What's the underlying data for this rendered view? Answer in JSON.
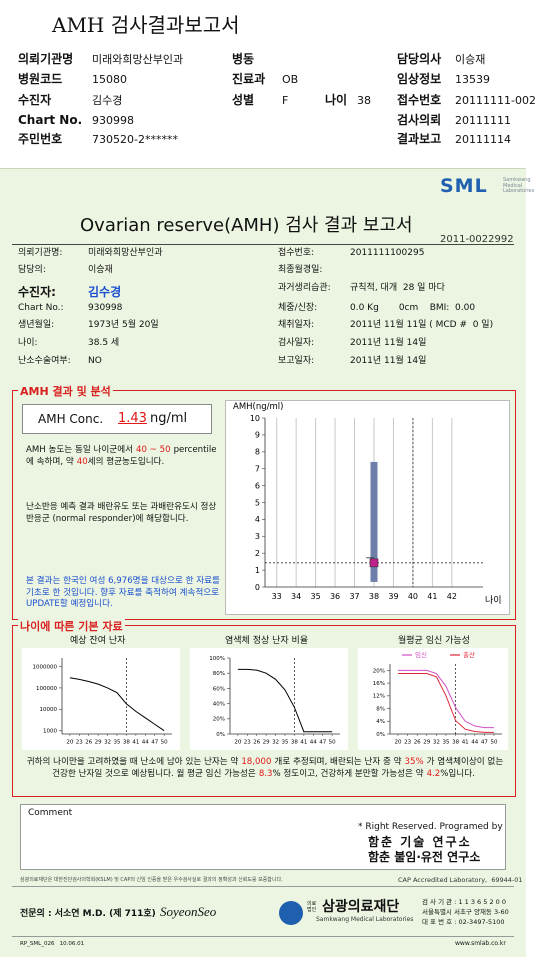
{
  "header": {
    "title": "AMH 검사결과보고서",
    "fields": [
      {
        "label": "의뢰기관명",
        "value": "미래와희망산부인과"
      },
      {
        "label": "병동"
      },
      {
        "label": "담당의사",
        "value": "이승재"
      },
      {
        "label": "병원코드",
        "value": "15080"
      },
      {
        "label": "진료과",
        "value": "OB"
      },
      {
        "label": "임상정보",
        "value": "13539"
      },
      {
        "label": "수진자",
        "value": "김수경"
      },
      {
        "label": "성별",
        "value": "F"
      },
      {
        "label": "나이",
        "value": "38"
      },
      {
        "label": "접수번호",
        "value": "20111111-002"
      },
      {
        "label": "Chart No.",
        "value": "930998"
      },
      {
        "label": "검사의뢰",
        "value": "20111111"
      },
      {
        "label": "주민번호",
        "value": "730520-2******"
      },
      {
        "label": "결과보고",
        "value": "20111114"
      }
    ]
  },
  "report": {
    "logo": {
      "name": "SML",
      "sub": "Samkwang Medical Laboratories"
    },
    "title": "Ovarian reserve(AMH) 검사 결과 보고서",
    "number": "2011-0022992",
    "info_left": [
      {
        "label": "의뢰기관명:",
        "value": "미래와희망산부인과"
      },
      {
        "label": "담당의:",
        "value": "이승재"
      },
      {
        "label": "수진자:",
        "value": "김수경"
      },
      {
        "label": "Chart No.:",
        "value": "930998"
      },
      {
        "label": "생년월일:",
        "value": "1973년 5월 20일"
      },
      {
        "label": "나이:",
        "value": "38.5 세"
      },
      {
        "label": "난소수술여부:",
        "value": "NO"
      }
    ],
    "info_right": [
      {
        "label": "접수번호:",
        "value": "2011111100295"
      },
      {
        "label": "최종월경일:"
      },
      {
        "label": "과거생리습관:",
        "value": "규칙적, 대개  28 일 마다"
      },
      {
        "label": "체중/신장:",
        "value": "0.0 Kg       0cm    BMI:  0.00"
      },
      {
        "label": "채취일자:",
        "value": "2011년 11월 11일 ( MCD #  0 일)"
      },
      {
        "label": "검사일자:",
        "value": "2011년 11월 14일"
      },
      {
        "label": "보고일자:",
        "value": "2011년 11월 14일"
      }
    ],
    "amh_section": "AMH 결과 및 분석",
    "conc": {
      "label": "AMH Conc.",
      "value": "1.43",
      "unit": "ng/ml"
    },
    "analysis": [
      "AMH 농도는 동일 나이군에서",
      "40 ~ 50",
      "percentile에 속하며, 약",
      "40",
      "세의 평균농도입니다."
    ],
    "response": "난소반응 예측 결과 배란유도 또는 과배란유도시 정상반응군 (normal responder)에 해당합니다.",
    "note": "본 결과는 한국인 여성 6,976명을 대상으로 한 자료를 기초로 한 것입니다. 향후 자료를 축적하여 계속적으로 UPDATE할 예정입니다.",
    "basic_section": "나이에 따른 기본 자료",
    "summary": [
      "귀하의 나이만을 고려하였을 때 난소에 남아 있는 난자는 약",
      "18,000",
      "개로 추정되며, 배란되는 난자 중 약",
      "35%",
      "가 염색체이상이 없는 건강한 난자일 것으로 예상됩니다. 월 평균 임신 가능성은",
      "8.3",
      "% 정도이고, 건강하게 분만할 가능성은 약",
      "4.2",
      "%입니다."
    ],
    "comment": "Comment",
    "credit": [
      "* Right Reserved. Programed by",
      "함춘 기술 연구소",
      "함춘 불임·유전 연구소"
    ]
  },
  "footer": {
    "cert": "삼광의료재단은 대한진단검사의학회(KSLM) 및 CAP의 신임 인증을 받은 우수검사실로 결과의 정확성과 신뢰도를 보증합니다.",
    "cap": "CAP Accredited Laboratory,  69944-01",
    "doctor": "전문의 : 서소연 M.D. (제 711호)",
    "signature": "SoyeonSeo",
    "org_prefix": "의료법인",
    "org": "삼광의료재단",
    "org_en": "Samkwang Medical Laboratories",
    "address": [
      "검 사 기 관 : 1 1 3 6 5 2 0 0",
      "서울특별시 서초구 양재동 3-60",
      "대 표 번 호 : 02-3497-5100"
    ],
    "form": "RP_SML_026   10.06.01",
    "url": "www.smlab.co.kr"
  },
  "chart_data": [
    {
      "type": "range",
      "ylabel": "AMH(ng/ml)",
      "xlabel": "나이",
      "x": [
        38
      ],
      "values": [
        1.43
      ],
      "low": [
        0.3
      ],
      "high": [
        7.4
      ],
      "bar_color": "#6d7fa8",
      "point_color": "#c0208a",
      "reference_x": 40,
      "xlim": [
        32.4,
        43.6
      ],
      "xticks": [
        33,
        34,
        35,
        36,
        37,
        38,
        39,
        40,
        41,
        42
      ],
      "ylim": [
        0,
        10
      ],
      "yticks": [
        0,
        1,
        2,
        3,
        4,
        5,
        6,
        7,
        8,
        9,
        10
      ],
      "grid": true
    },
    {
      "type": "line",
      "title": "예상 잔여 난자",
      "log": true,
      "x": [
        20,
        23,
        26,
        29,
        32,
        35,
        38,
        41,
        44,
        47,
        50
      ],
      "series": [
        {
          "color": "#000000",
          "values": [
            300000,
            250000,
            200000,
            150000,
            100000,
            60000,
            18000,
            8000,
            4000,
            2000,
            1000
          ]
        }
      ],
      "reference_x": 38,
      "xlim": [
        17.5,
        52.5
      ],
      "xticks": [
        20,
        23,
        26,
        29,
        32,
        35,
        38,
        41,
        44,
        47,
        50
      ],
      "ylim": [
        700,
        2500000
      ],
      "yticks": [
        1000,
        10000,
        100000,
        1000000
      ]
    },
    {
      "type": "line",
      "title": "염색체 정상 난자 비율",
      "x": [
        20,
        23,
        26,
        29,
        32,
        35,
        38,
        41,
        44,
        47,
        50
      ],
      "series": [
        {
          "color": "#000000",
          "values": [
            85,
            85,
            84,
            80,
            72,
            58,
            35,
            3,
            3,
            3,
            3
          ]
        }
      ],
      "reference_x": 38,
      "xlim": [
        17.5,
        52.5
      ],
      "xticks": [
        20,
        23,
        26,
        29,
        32,
        35,
        38,
        41,
        44,
        47,
        50
      ],
      "ylim": [
        0,
        100
      ],
      "yticks": [
        {
          "value": 0,
          "label": "0%"
        },
        {
          "value": 20,
          "label": "20%"
        },
        {
          "value": 40,
          "label": "40%"
        },
        {
          "value": 60,
          "label": "60%"
        },
        {
          "value": 80,
          "label": "80%"
        },
        {
          "value": 100,
          "label": "100%"
        }
      ]
    },
    {
      "type": "line",
      "title": "월평균 임신 가능성",
      "x": [
        20,
        23,
        26,
        29,
        32,
        35,
        38,
        41,
        44,
        47,
        50
      ],
      "series": [
        {
          "name": "임신",
          "color": "#d050c8",
          "values": [
            20,
            20,
            20,
            20,
            19,
            15,
            8.3,
            4,
            2.5,
            2,
            2
          ]
        },
        {
          "name": "출산",
          "color": "#e02838",
          "values": [
            19,
            19,
            19,
            19,
            18,
            12,
            4.2,
            1.5,
            0.8,
            0.5,
            0.5
          ]
        }
      ],
      "reference_x": 38,
      "xlim": [
        17.5,
        52.5
      ],
      "xticks": [
        20,
        23,
        26,
        29,
        32,
        35,
        38,
        41,
        44,
        47,
        50
      ],
      "ylim": [
        0,
        22
      ],
      "yticks": [
        {
          "value": 0,
          "label": "0%"
        },
        {
          "value": 4,
          "label": "4%"
        },
        {
          "value": 8,
          "label": "8%"
        },
        {
          "value": 12,
          "label": "12%"
        },
        {
          "value": 16,
          "label": "16%"
        },
        {
          "value": 20,
          "label": "20%"
        }
      ]
    }
  ]
}
